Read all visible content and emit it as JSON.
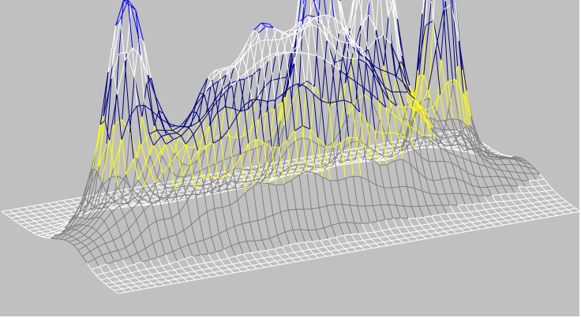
{
  "chart_data": {
    "type": "surface",
    "title": "",
    "xlabel": "",
    "ylabel": "",
    "zlabel": "",
    "render_style": "wireframe mesh, height-banded line colors",
    "background_color": "#c0c0c0",
    "grid": false,
    "legend": "none",
    "axes_shown": false,
    "x_range": [
      0,
      1
    ],
    "y_range": [
      0,
      1
    ],
    "z_range": [
      0,
      1
    ],
    "grid_resolution": {
      "nx": 60,
      "ny": 26
    },
    "base_level": 0,
    "color_bands": [
      {
        "from": 0.0,
        "to": 0.03,
        "color": "#ffffff"
      },
      {
        "from": 0.03,
        "to": 0.25,
        "color": "#808080"
      },
      {
        "from": 0.25,
        "to": 0.38,
        "color": "#ffff00"
      },
      {
        "from": 0.38,
        "to": 0.56,
        "color": "#000080"
      },
      {
        "from": 0.56,
        "to": 0.74,
        "color": "#ffffff"
      },
      {
        "from": 0.74,
        "to": 0.88,
        "color": "#0000ff"
      },
      {
        "from": 0.88,
        "to": 1.0,
        "color": "#ff0000"
      }
    ],
    "surface_terms": [
      {
        "x": 0.17,
        "y": 0.6,
        "height": 0.8,
        "sx": 0.06,
        "sy": 0.1
      },
      {
        "x": 0.58,
        "y": 0.6,
        "height": 0.86,
        "sx": 0.05,
        "sy": 0.1
      },
      {
        "x": 0.71,
        "y": 0.62,
        "height": 0.96,
        "sx": 0.055,
        "sy": 0.1
      },
      {
        "x": 0.86,
        "y": 0.65,
        "height": 1.0,
        "sx": 0.04,
        "sy": 0.1
      },
      {
        "x": 0.5,
        "y": 0.45,
        "height": 0.55,
        "sx": 0.32,
        "sy": 0.17
      },
      {
        "x": 0.4,
        "y": 0.35,
        "height": 0.3,
        "sx": 0.25,
        "sy": 0.13
      }
    ]
  }
}
